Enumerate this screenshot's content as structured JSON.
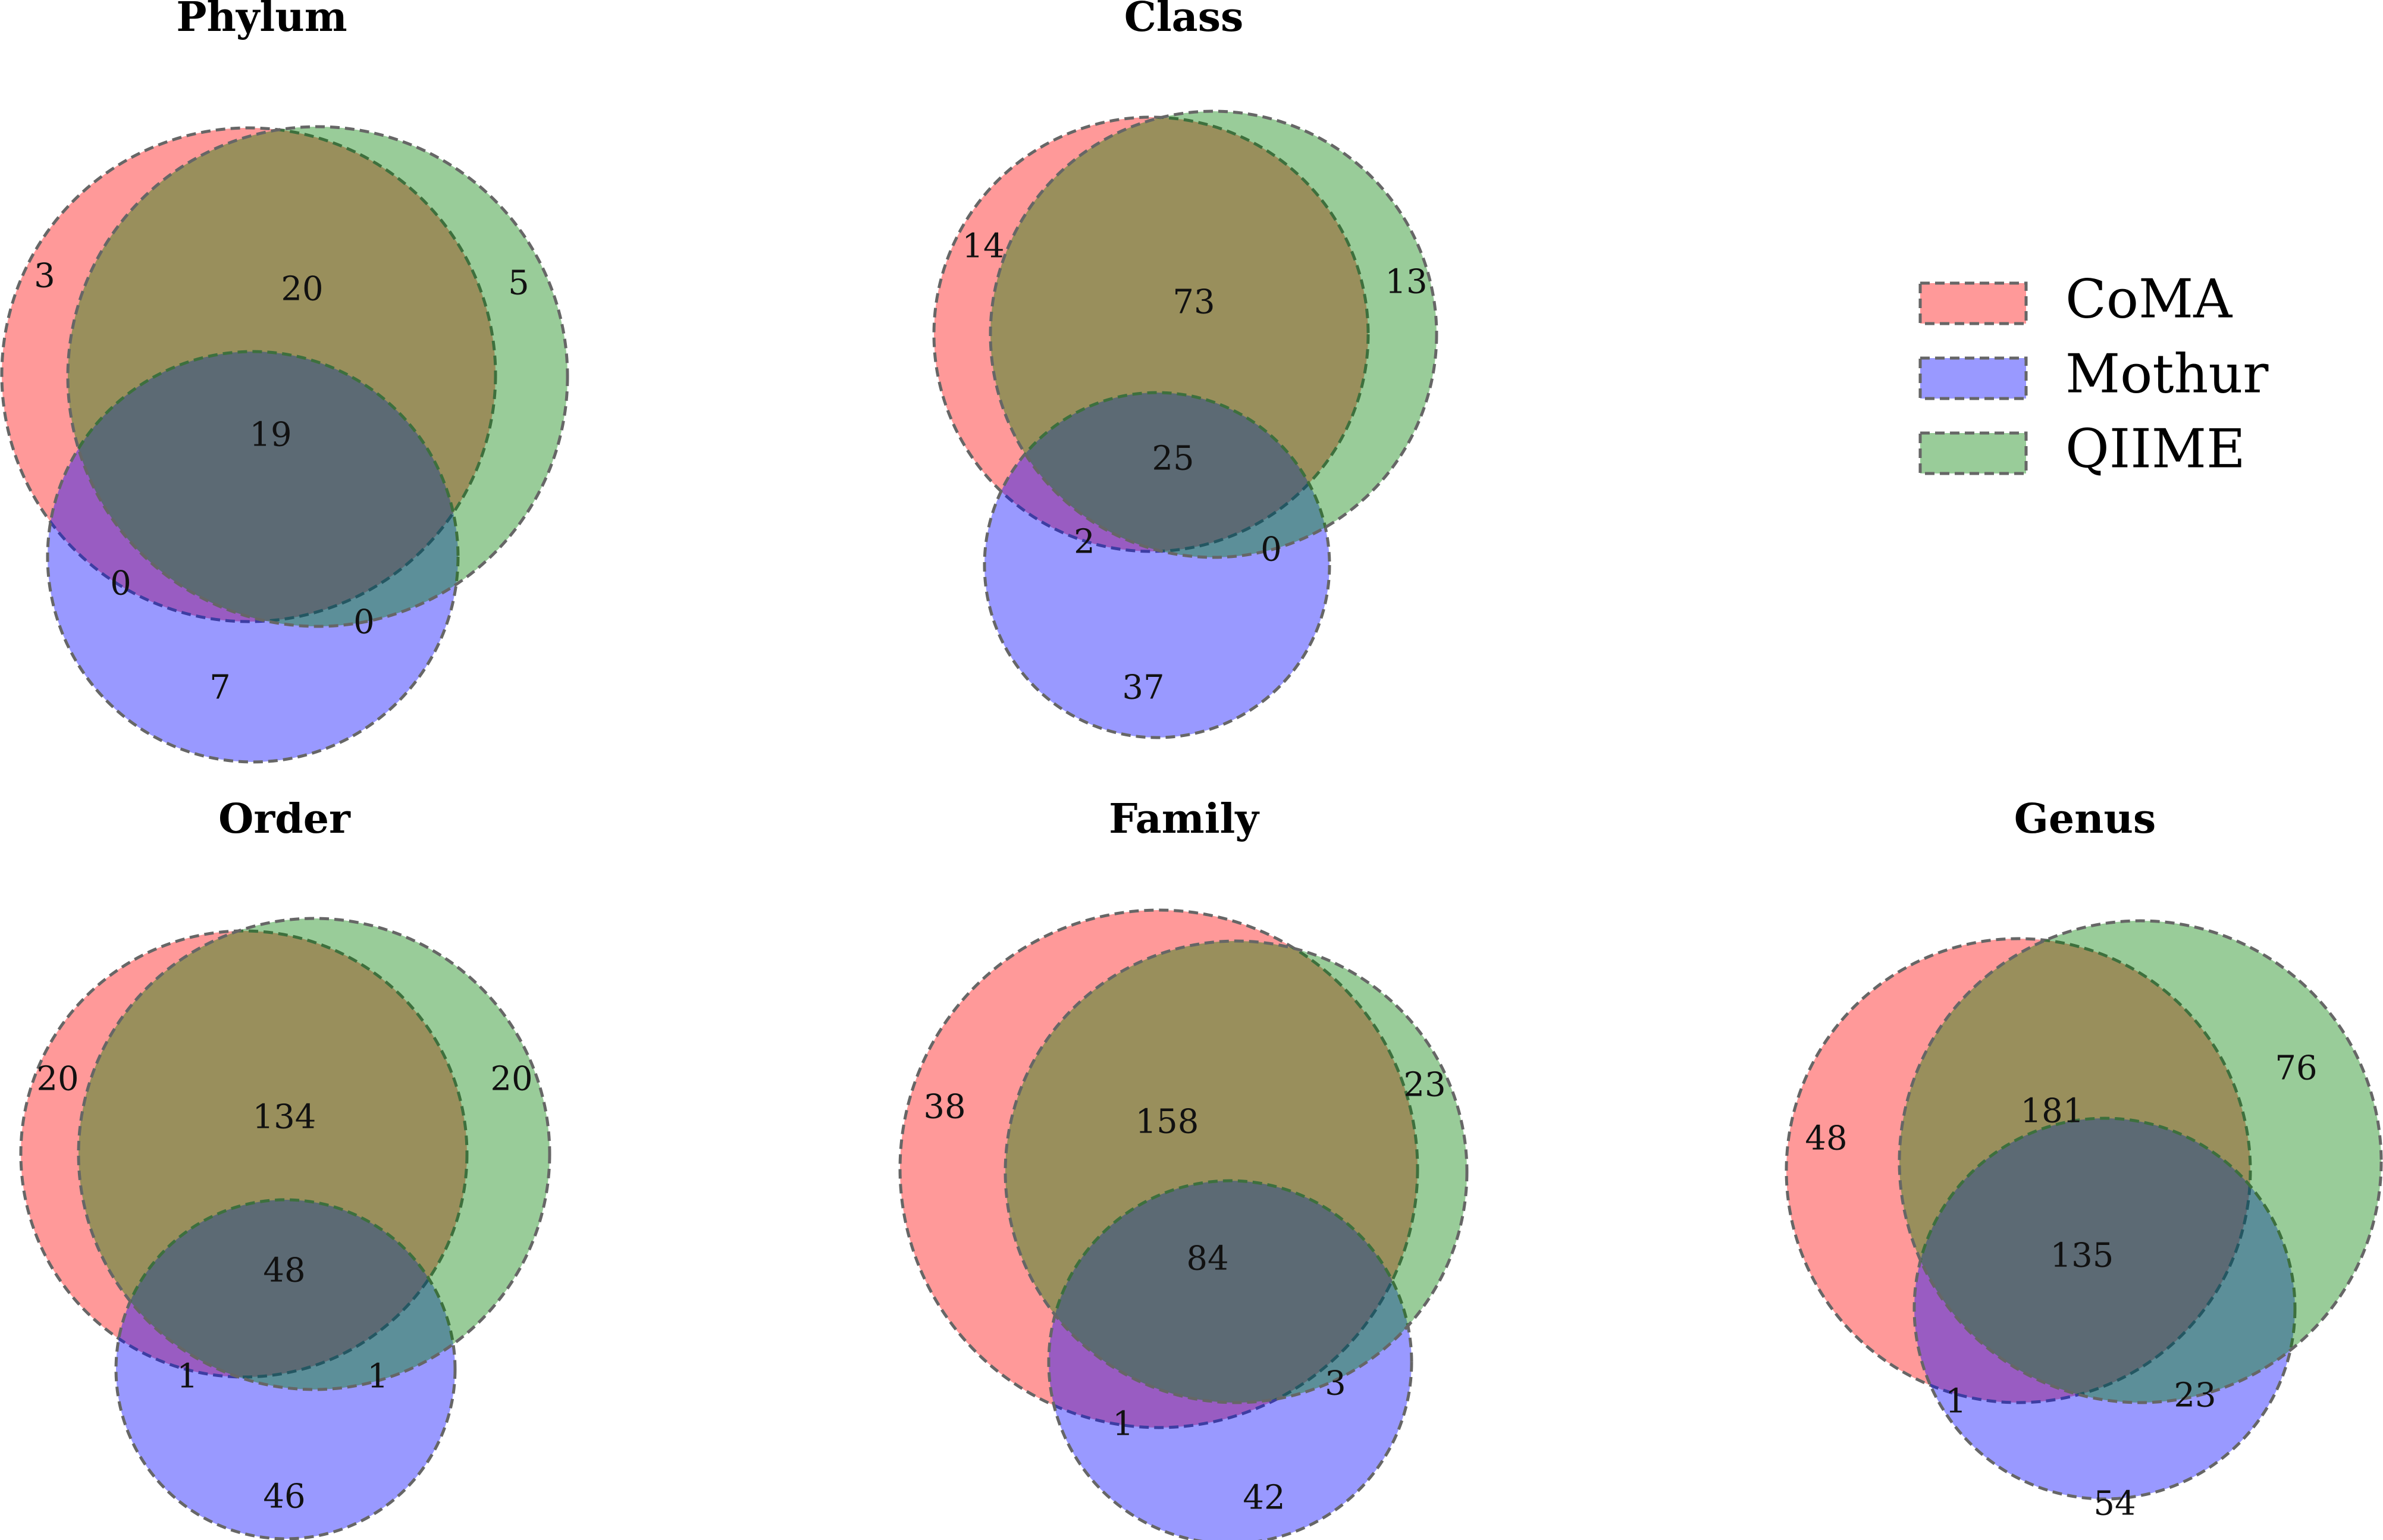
{
  "chart_data": {
    "type": "venn3",
    "sets": [
      "CoMA",
      "Mothur",
      "QIIME"
    ],
    "colors": {
      "CoMA": "#ff0000",
      "Mothur": "#0000ff",
      "QIIME": "#008000"
    },
    "legend_position": "right",
    "panels": [
      {
        "title": "Phylum",
        "regions": {
          "coma_only": "3",
          "qiime_only": "5",
          "coma_qiime": "20",
          "all_three": "19",
          "coma_mothur": "0",
          "mothur_qiime": "0",
          "mothur_only": "7"
        }
      },
      {
        "title": "Class",
        "regions": {
          "coma_only": "14",
          "qiime_only": "13",
          "coma_qiime": "73",
          "all_three": "25",
          "coma_mothur": "2",
          "mothur_qiime": "0",
          "mothur_only": "37"
        }
      },
      {
        "title": "Order",
        "regions": {
          "coma_only": "20",
          "qiime_only": "20",
          "coma_qiime": "134",
          "all_three": "48",
          "coma_mothur": "1",
          "mothur_qiime": "1",
          "mothur_only": "46"
        }
      },
      {
        "title": "Family",
        "regions": {
          "coma_only": "38",
          "qiime_only": "23",
          "coma_qiime": "158",
          "all_three": "84",
          "coma_mothur": "1",
          "mothur_qiime": "3",
          "mothur_only": "42"
        }
      },
      {
        "title": "Genus",
        "regions": {
          "coma_only": "48",
          "qiime_only": "76",
          "coma_qiime": "181",
          "all_three": "135",
          "coma_mothur": "1",
          "mothur_qiime": "23",
          "mothur_only": "54"
        }
      }
    ]
  }
}
